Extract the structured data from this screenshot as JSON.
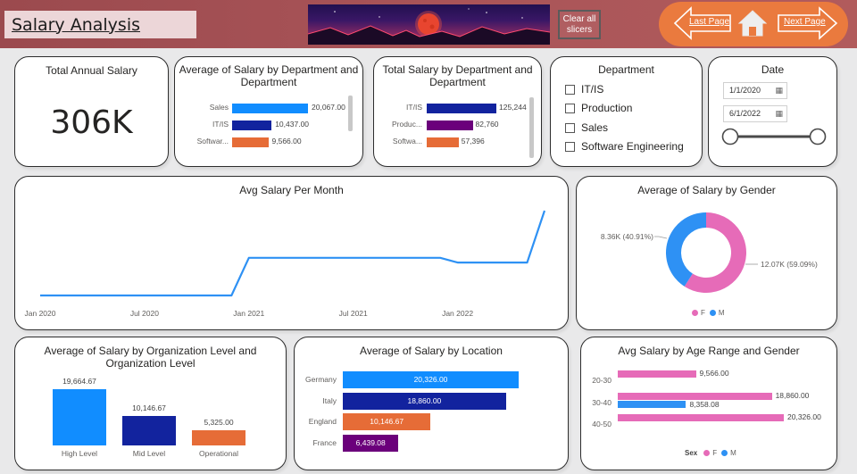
{
  "header": {
    "title": "Salary Analysis",
    "clear_button": "Clear all slicers",
    "last_page": "Last Page",
    "next_page": "Next Page"
  },
  "kpi": {
    "title": "Total Annual Salary",
    "value": "306K"
  },
  "avg_by_dept": {
    "title": "Average of Salary by Department and Department",
    "rows": [
      {
        "label": "Sales",
        "value": 20067.0,
        "display": "20,067.00",
        "color": "#118dff"
      },
      {
        "label": "IT/IS",
        "value": 10437.0,
        "display": "10,437.00",
        "color": "#12239e"
      },
      {
        "label": "Softwar...",
        "value": 9566.0,
        "display": "9,566.00",
        "color": "#e66c37"
      }
    ]
  },
  "total_by_dept": {
    "title": "Total Salary by Department and Department",
    "rows": [
      {
        "label": "IT/IS",
        "value": 125244,
        "display": "125,244",
        "color": "#12239e"
      },
      {
        "label": "Produc...",
        "value": 82760,
        "display": "82,760",
        "color": "#6b007b"
      },
      {
        "label": "Softwa...",
        "value": 57396,
        "display": "57,396",
        "color": "#e66c37"
      }
    ]
  },
  "dept_slicer": {
    "title": "Department",
    "items": [
      "IT/IS",
      "Production",
      "Sales",
      "Software Engineering"
    ]
  },
  "date_slicer": {
    "title": "Date",
    "start": "1/1/2020",
    "end": "6/1/2022"
  },
  "monthly": {
    "title": "Avg Salary Per Month",
    "x_ticks": [
      "Jan 2020",
      "Jul 2020",
      "Jan 2021",
      "Jul 2021",
      "Jan 2022"
    ]
  },
  "gender": {
    "title": "Average of Salary by Gender",
    "slices": [
      {
        "name": "F",
        "label": "12.07K (59.09%)",
        "value": 59.09,
        "color": "#e66bb8"
      },
      {
        "name": "M",
        "label": "8.36K (40.91%)",
        "value": 40.91,
        "color": "#2e91f4"
      }
    ]
  },
  "org_level": {
    "title": "Average of Salary by Organization Level and Organization Level",
    "bars": [
      {
        "category": "High Level",
        "value": 19664.67,
        "display": "19,664.67",
        "color": "#118dff"
      },
      {
        "category": "Mid Level",
        "value": 10146.67,
        "display": "10,146.67",
        "color": "#12239e"
      },
      {
        "category": "Operational",
        "value": 5325.0,
        "display": "5,325.00",
        "color": "#e66c37"
      }
    ]
  },
  "location": {
    "title": "Average of Salary by Location",
    "bars": [
      {
        "category": "Germany",
        "value": 20326.0,
        "display": "20,326.00",
        "color": "#118dff"
      },
      {
        "category": "Italy",
        "value": 18860.0,
        "display": "18,860.00",
        "color": "#12239e"
      },
      {
        "category": "England",
        "value": 10146.67,
        "display": "10,146.67",
        "color": "#e66c37"
      },
      {
        "category": "France",
        "value": 6439.08,
        "display": "6,439.08",
        "color": "#6b007b"
      }
    ]
  },
  "age_gender": {
    "title": "Avg Salary by Age Range and Gender",
    "legend_title": "Sex",
    "legend": [
      {
        "name": "F",
        "color": "#e66bb8"
      },
      {
        "name": "M",
        "color": "#2e91f4"
      }
    ]
  },
  "chart_data": [
    {
      "type": "bar",
      "title": "Average of Salary by Department and Department",
      "categories": [
        "Sales",
        "IT/IS",
        "Softwar..."
      ],
      "values": [
        20067.0,
        10437.0,
        9566.0
      ]
    },
    {
      "type": "bar",
      "title": "Total Salary by Department and Department",
      "categories": [
        "IT/IS",
        "Produc...",
        "Softwa..."
      ],
      "values": [
        125244,
        82760,
        57396
      ]
    },
    {
      "type": "line",
      "title": "Avg Salary Per Month",
      "x": [
        "2020-01",
        "2020-02",
        "2020-03",
        "2020-04",
        "2020-05",
        "2020-06",
        "2020-07",
        "2020-08",
        "2020-09",
        "2020-10",
        "2020-11",
        "2020-12",
        "2021-01",
        "2021-02",
        "2021-03",
        "2021-04",
        "2021-05",
        "2021-06",
        "2021-07",
        "2021-08",
        "2021-09",
        "2021-10",
        "2021-11",
        "2021-12",
        "2022-01",
        "2022-02",
        "2022-03",
        "2022-04",
        "2022-05",
        "2022-06"
      ],
      "values": [
        9800,
        9800,
        9800,
        9800,
        9800,
        9800,
        9800,
        9800,
        9800,
        9800,
        9800,
        9800,
        12200,
        12200,
        12200,
        12200,
        12200,
        12200,
        12200,
        12200,
        12200,
        12200,
        12200,
        12200,
        11900,
        11900,
        11900,
        11900,
        11900,
        15200
      ],
      "x_ticks": [
        "Jan 2020",
        "Jul 2020",
        "Jan 2021",
        "Jul 2021",
        "Jan 2022"
      ]
    },
    {
      "type": "pie",
      "title": "Average of Salary by Gender",
      "categories": [
        "F",
        "M"
      ],
      "values": [
        12070,
        8360
      ],
      "labels": [
        "12.07K (59.09%)",
        "8.36K (40.91%)"
      ]
    },
    {
      "type": "bar",
      "title": "Average of Salary by Organization Level and Organization Level",
      "categories": [
        "High Level",
        "Mid Level",
        "Operational"
      ],
      "values": [
        19664.67,
        10146.67,
        5325.0
      ]
    },
    {
      "type": "bar",
      "title": "Average of Salary by Location",
      "categories": [
        "Germany",
        "Italy",
        "England",
        "France"
      ],
      "values": [
        20326.0,
        18860.0,
        10146.67,
        6439.08
      ]
    },
    {
      "type": "bar",
      "title": "Avg Salary by Age Range and Gender",
      "categories": [
        "20-30",
        "30-40",
        "40-50"
      ],
      "series": [
        {
          "name": "F",
          "values": [
            9566.0,
            18860.0,
            20326.0
          ]
        },
        {
          "name": "M",
          "values": [
            null,
            8358.08,
            null
          ]
        }
      ],
      "display": [
        {
          "category": "20-30",
          "F": "9,566.00"
        },
        {
          "category": "30-40",
          "F": "18,860.00",
          "M": "8,358.08"
        },
        {
          "category": "40-50",
          "F": "20,326.00"
        }
      ]
    }
  ]
}
